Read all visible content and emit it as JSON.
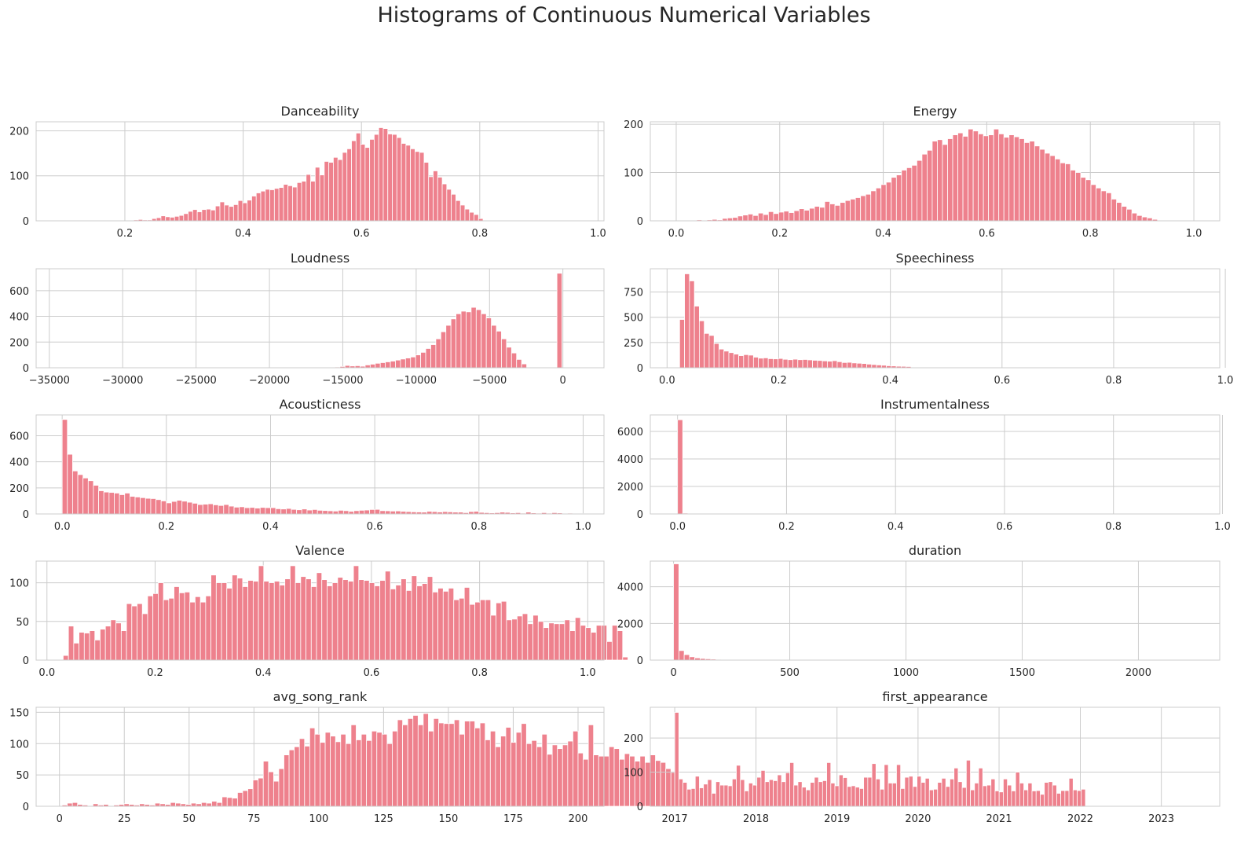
{
  "figure_title": "Histograms of Continuous Numerical Variables",
  "colors": {
    "bar": "#ee818d",
    "grid": "#cccccc",
    "axis_text": "#262626"
  },
  "chart_data": [
    {
      "type": "bar",
      "title": "Danceability",
      "grid": true,
      "xlim": [
        0.05,
        1.01
      ],
      "ylim": [
        0,
        220
      ],
      "xticks": [
        0.2,
        0.4,
        0.6,
        0.8,
        1.0
      ],
      "xtick_labels": [
        "0.2",
        "0.4",
        "0.6",
        "0.8",
        "1.0"
      ],
      "yticks": [
        0,
        100,
        200
      ],
      "ytick_labels": [
        "0",
        "100",
        "200"
      ],
      "bin_start": 0.215,
      "bin_width": 0.00767,
      "values": [
        2,
        3,
        2,
        2,
        5,
        7,
        11,
        9,
        8,
        10,
        12,
        16,
        21,
        25,
        20,
        25,
        26,
        24,
        33,
        42,
        35,
        32,
        36,
        45,
        40,
        46,
        55,
        62,
        66,
        70,
        69,
        72,
        74,
        81,
        78,
        75,
        85,
        88,
        103,
        88,
        119,
        102,
        132,
        130,
        141,
        136,
        152,
        160,
        178,
        195,
        170,
        163,
        181,
        192,
        207,
        205,
        193,
        192,
        185,
        172,
        168,
        160,
        154,
        152,
        130,
        98,
        111,
        97,
        82,
        70,
        59,
        45,
        35,
        26,
        19,
        14,
        5
      ]
    },
    {
      "type": "bar",
      "title": "Energy",
      "grid": true,
      "xlim": [
        -0.05,
        1.05
      ],
      "ylim": [
        0,
        205
      ],
      "xticks": [
        0.0,
        0.2,
        0.4,
        0.6,
        0.8,
        1.0
      ],
      "xtick_labels": [
        "0.0",
        "0.2",
        "0.4",
        "0.6",
        "0.8",
        "1.0"
      ],
      "yticks": [
        0,
        100,
        200
      ],
      "ytick_labels": [
        "0",
        "100",
        "200"
      ],
      "bin_start": 0.01,
      "bin_width": 0.00989,
      "values": [
        0,
        1,
        0,
        2,
        0,
        2,
        3,
        2,
        5,
        6,
        7,
        10,
        12,
        14,
        11,
        16,
        13,
        19,
        15,
        18,
        20,
        17,
        21,
        25,
        22,
        26,
        30,
        28,
        40,
        35,
        32,
        38,
        42,
        45,
        48,
        52,
        55,
        62,
        68,
        75,
        80,
        90,
        95,
        105,
        110,
        115,
        125,
        138,
        146,
        165,
        168,
        158,
        170,
        178,
        182,
        175,
        190,
        186,
        180,
        176,
        178,
        190,
        180,
        173,
        178,
        174,
        170,
        162,
        165,
        155,
        148,
        140,
        135,
        128,
        120,
        118,
        105,
        100,
        90,
        85,
        75,
        68,
        62,
        58,
        45,
        38,
        30,
        24,
        16,
        11,
        8,
        6,
        3,
        0,
        0,
        0,
        0,
        0,
        0
      ]
    },
    {
      "type": "bar",
      "title": "Loudness",
      "grid": true,
      "xlim": [
        -35900,
        2800
      ],
      "ylim": [
        0,
        770
      ],
      "xticks": [
        -35000,
        -30000,
        -25000,
        -20000,
        -15000,
        -10000,
        -5000,
        0
      ],
      "xtick_labels": [
        "−35000",
        "−30000",
        "−25000",
        "−20000",
        "−15000",
        "−10000",
        "−5000",
        "0"
      ],
      "yticks": [
        0,
        200,
        400,
        600
      ],
      "ytick_labels": [
        "0",
        "200",
        "400",
        "600"
      ],
      "bin_start": -17260,
      "bin_width": 344,
      "values": [
        0,
        0,
        2,
        4,
        3,
        6,
        10,
        18,
        14,
        16,
        12,
        22,
        28,
        35,
        40,
        46,
        52,
        60,
        68,
        76,
        84,
        100,
        120,
        150,
        180,
        225,
        280,
        330,
        380,
        420,
        440,
        435,
        470,
        452,
        420,
        388,
        330,
        285,
        225,
        160,
        115,
        65,
        30,
        0,
        0,
        0,
        0,
        0,
        0,
        735
      ]
    },
    {
      "type": "bar",
      "title": "Speechiness",
      "grid": true,
      "xlim": [
        -0.03,
        0.99
      ],
      "ylim": [
        0,
        980
      ],
      "xticks": [
        0.0,
        0.2,
        0.4,
        0.6,
        0.8,
        1.0
      ],
      "xtick_labels": [
        "0.0",
        "0.2",
        "0.4",
        "0.6",
        "0.8",
        "1.0"
      ],
      "yticks": [
        0,
        250,
        500,
        750
      ],
      "ytick_labels": [
        "0",
        "250",
        "500",
        "750"
      ],
      "bin_start": 0.0225,
      "bin_width": 0.00882,
      "values": [
        478,
        930,
        860,
        610,
        465,
        340,
        320,
        240,
        185,
        165,
        150,
        135,
        120,
        130,
        125,
        105,
        95,
        98,
        90,
        88,
        92,
        84,
        80,
        85,
        80,
        82,
        78,
        74,
        72,
        68,
        65,
        70,
        60,
        52,
        54,
        48,
        45,
        42,
        36,
        32,
        28,
        25,
        20,
        18,
        15,
        14,
        12,
        0
      ]
    },
    {
      "type": "bar",
      "title": "Acousticness",
      "grid": true,
      "xlim": [
        -0.05,
        1.04
      ],
      "ylim": [
        0,
        760
      ],
      "xticks": [
        0.0,
        0.2,
        0.4,
        0.6,
        0.8,
        1.0
      ],
      "xtick_labels": [
        "0.0",
        "0.2",
        "0.4",
        "0.6",
        "0.8",
        "1.0"
      ],
      "yticks": [
        0,
        200,
        400,
        600
      ],
      "ytick_labels": [
        "0",
        "200",
        "400",
        "600"
      ],
      "bin_start": 0.0,
      "bin_width": 0.01,
      "values": [
        725,
        458,
        330,
        302,
        276,
        255,
        220,
        178,
        168,
        165,
        160,
        148,
        160,
        135,
        130,
        125,
        120,
        118,
        110,
        100,
        85,
        96,
        105,
        98,
        90,
        82,
        72,
        75,
        78,
        70,
        65,
        72,
        60,
        52,
        55,
        48,
        50,
        45,
        50,
        48,
        48,
        40,
        38,
        42,
        35,
        32,
        38,
        30,
        34,
        28,
        26,
        24,
        22,
        28,
        25,
        20,
        25,
        28,
        30,
        34,
        35,
        25,
        24,
        22,
        23,
        20,
        18,
        16,
        15,
        14,
        20,
        18,
        15,
        18,
        16,
        14,
        14,
        10,
        18,
        20,
        12,
        10,
        8,
        10,
        14,
        12,
        8,
        10,
        6,
        14,
        8,
        6,
        10,
        6,
        10,
        8,
        4,
        6,
        5,
        3
      ]
    },
    {
      "type": "bar",
      "title": "Instrumentalness",
      "grid": true,
      "xlim": [
        -0.05,
        0.995
      ],
      "ylim": [
        0,
        7200
      ],
      "xticks": [
        0.0,
        0.2,
        0.4,
        0.6,
        0.8,
        1.0
      ],
      "xtick_labels": [
        "0.0",
        "0.2",
        "0.4",
        "0.6",
        "0.8",
        "1.0"
      ],
      "yticks": [
        0,
        2000,
        4000,
        6000
      ],
      "ytick_labels": [
        "0",
        "2000",
        "4000",
        "6000"
      ],
      "bin_start": 0.0,
      "bin_width": 0.0095,
      "values": [
        6850,
        60,
        25,
        18,
        12,
        10,
        8,
        8,
        6,
        5,
        5,
        4,
        4,
        3,
        3,
        3,
        3,
        2,
        2,
        2,
        2,
        2,
        2,
        2,
        1,
        1,
        1,
        1,
        1,
        1
      ]
    },
    {
      "type": "bar",
      "title": "Valence",
      "grid": true,
      "xlim": [
        -0.02,
        1.03
      ],
      "ylim": [
        0,
        128
      ],
      "xticks": [
        0.0,
        0.2,
        0.4,
        0.6,
        0.8,
        1.0
      ],
      "xtick_labels": [
        "0.0",
        "0.2",
        "0.4",
        "0.6",
        "0.8",
        "1.0"
      ],
      "yticks": [
        0,
        50,
        100
      ],
      "ytick_labels": [
        "0",
        "50",
        "100"
      ],
      "bin_start": 0.03,
      "bin_width": 0.00976,
      "values": [
        6,
        44,
        22,
        36,
        35,
        38,
        26,
        40,
        44,
        52,
        48,
        38,
        73,
        70,
        73,
        60,
        83,
        86,
        100,
        78,
        80,
        95,
        87,
        88,
        75,
        82,
        75,
        83,
        110,
        100,
        100,
        93,
        110,
        106,
        95,
        103,
        102,
        122,
        102,
        100,
        102,
        97,
        105,
        122,
        100,
        108,
        105,
        95,
        113,
        104,
        96,
        100,
        107,
        104,
        102,
        122,
        104,
        103,
        100,
        96,
        103,
        115,
        92,
        97,
        105,
        90,
        109,
        96,
        99,
        108,
        88,
        93,
        89,
        93,
        78,
        80,
        94,
        72,
        75,
        78,
        78,
        58,
        74,
        76,
        52,
        53,
        57,
        60,
        47,
        58,
        50,
        42,
        48,
        47,
        47,
        52,
        38,
        55,
        45,
        42,
        36,
        45,
        45,
        24,
        45,
        38,
        4
      ]
    },
    {
      "type": "bar",
      "title": "duration",
      "grid": true,
      "xlim": [
        -100,
        2350
      ],
      "ylim": [
        0,
        5400
      ],
      "xticks": [
        0,
        500,
        1000,
        1500,
        2000
      ],
      "xtick_labels": [
        "0",
        "500",
        "1000",
        "1500",
        "2000"
      ],
      "yticks": [
        0,
        2000,
        4000
      ],
      "ytick_labels": [
        "0",
        "2000",
        "4000"
      ],
      "bin_start": 0,
      "bin_width": 22.85,
      "values": [
        5250,
        520,
        300,
        180,
        120,
        90,
        70,
        55,
        40,
        35,
        30,
        25,
        20,
        18,
        15,
        12,
        10,
        9,
        8,
        7,
        6,
        5,
        5,
        4,
        4,
        3,
        3,
        3,
        3,
        3,
        2,
        2,
        2,
        2,
        2,
        2,
        2,
        2,
        2,
        2,
        2,
        2,
        1,
        1,
        1,
        1,
        1,
        1,
        1,
        1,
        1,
        1,
        1,
        1,
        1,
        1,
        1,
        1,
        1,
        1,
        1,
        1,
        1,
        1,
        1,
        1,
        1,
        1,
        1,
        1,
        1,
        1,
        1,
        1,
        1,
        1,
        1,
        1,
        1,
        1,
        1,
        1,
        1,
        1,
        1,
        1,
        1,
        1,
        1,
        1,
        1,
        1,
        1,
        1,
        1,
        1,
        1,
        1,
        1,
        1
      ]
    },
    {
      "type": "bar",
      "title": "avg_song_rank",
      "grid": true,
      "xlim": [
        -9,
        210
      ],
      "ylim": [
        0,
        158
      ],
      "xticks": [
        0,
        25,
        50,
        75,
        100,
        125,
        150,
        175,
        200
      ],
      "xtick_labels": [
        "0",
        "25",
        "50",
        "75",
        "100",
        "125",
        "150",
        "175",
        "200"
      ],
      "yticks": [
        0,
        50,
        100,
        150
      ],
      "ytick_labels": [
        "0",
        "50",
        "100",
        "150"
      ],
      "bin_start": 1.0,
      "bin_width": 1.99,
      "values": [
        2,
        5,
        6,
        3,
        2,
        1,
        4,
        2,
        3,
        1,
        2,
        3,
        4,
        3,
        2,
        4,
        3,
        2,
        5,
        4,
        3,
        6,
        5,
        4,
        3,
        5,
        4,
        6,
        5,
        8,
        6,
        15,
        14,
        13,
        22,
        25,
        28,
        42,
        45,
        72,
        55,
        40,
        60,
        82,
        90,
        95,
        108,
        96,
        125,
        115,
        102,
        118,
        112,
        103,
        115,
        100,
        130,
        106,
        115,
        105,
        120,
        118,
        115,
        100,
        120,
        138,
        130,
        140,
        145,
        130,
        148,
        120,
        140,
        133,
        132,
        132,
        138,
        115,
        136,
        136,
        125,
        133,
        106,
        120,
        95,
        112,
        126,
        102,
        118,
        132,
        100,
        105,
        95,
        115,
        83,
        98,
        92,
        98,
        104,
        120,
        85,
        75,
        130,
        82,
        80,
        80,
        95,
        92,
        75,
        84,
        80,
        72,
        80,
        70,
        82,
        73,
        70,
        60,
        54
      ]
    },
    {
      "type": "bar",
      "title": "first_appearance",
      "grid": true,
      "xlim": [
        -110,
        2455
      ],
      "ylim": [
        0,
        290
      ],
      "xticks": [
        0,
        366,
        731,
        1096,
        1461,
        1827,
        2192
      ],
      "xtick_labels": [
        "2017",
        "2018",
        "2019",
        "2020",
        "2021",
        "2022",
        "2023"
      ],
      "yticks": [
        0,
        100,
        200
      ],
      "ytick_labels": [
        "0",
        "100",
        "200"
      ],
      "bin_start": 0,
      "bin_width": 18.5,
      "values": [
        275,
        80,
        70,
        50,
        52,
        88,
        54,
        65,
        78,
        38,
        72,
        62,
        62,
        60,
        80,
        120,
        78,
        45,
        68,
        62,
        85,
        105,
        72,
        78,
        75,
        92,
        72,
        98,
        128,
        62,
        72,
        56,
        48,
        70,
        85,
        72,
        75,
        128,
        68,
        60,
        92,
        84,
        58,
        60,
        56,
        52,
        85,
        85,
        125,
        80,
        50,
        122,
        68,
        68,
        122,
        52,
        85,
        88,
        58,
        88,
        70,
        82,
        48,
        50,
        70,
        82,
        58,
        80,
        112,
        72,
        55,
        135,
        48,
        68,
        112,
        60,
        62,
        80,
        45,
        42,
        80,
        62,
        45,
        100,
        68,
        48,
        68,
        45,
        46,
        35,
        70,
        72,
        62,
        38,
        46,
        46,
        82,
        48,
        46,
        50
      ]
    }
  ]
}
